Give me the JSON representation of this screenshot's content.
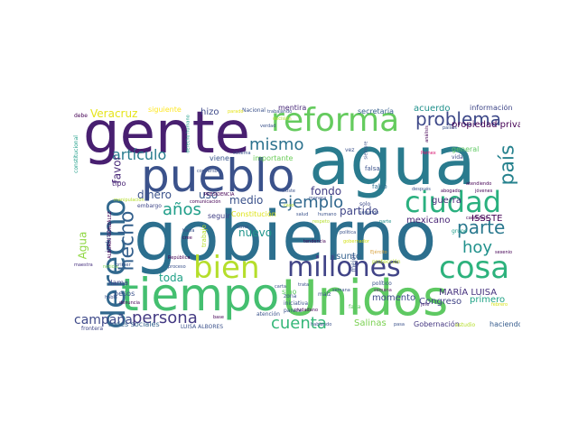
{
  "title": "",
  "words": [
    {
      "text": "agua",
      "color": "#2a7b8e"
    },
    {
      "text": "gobierno",
      "color": "#2c6f8e"
    },
    {
      "text": "gente",
      "color": "#481f70"
    },
    {
      "text": "tiempo",
      "color": "#44bf70"
    },
    {
      "text": "Unidos",
      "color": "#5ec962"
    },
    {
      "text": "pueblo",
      "color": "#3b528b"
    },
    {
      "text": "reforma",
      "color": "#65cb5e"
    },
    {
      "text": "derecho",
      "color": "#31688e"
    },
    {
      "text": "bien",
      "color": "#b5de2b"
    },
    {
      "text": "millones",
      "color": "#414487"
    },
    {
      "text": "cosa",
      "color": "#2db27d"
    },
    {
      "text": "ciudad",
      "color": "#2ab07f"
    },
    {
      "text": "problema",
      "color": "#3e4989"
    },
    {
      "text": "hecho",
      "color": "#34608d"
    },
    {
      "text": "persona",
      "color": "#443a83"
    },
    {
      "text": "cuenta",
      "color": "#35b779"
    },
    {
      "text": "ejemplo",
      "color": "#31688e"
    },
    {
      "text": "parte",
      "color": "#2a788e"
    },
    {
      "text": "país",
      "color": "#26828e"
    },
    {
      "text": "hoy",
      "color": "#21918c"
    },
    {
      "text": "mismo",
      "color": "#2c728e"
    },
    {
      "text": "años",
      "color": "#1f9e89"
    },
    {
      "text": "artículo",
      "color": "#287c8e"
    },
    {
      "text": "campaña",
      "color": "#3e4989"
    },
    {
      "text": "Veracruz",
      "color": "#e5e419"
    },
    {
      "text": "nuevo",
      "color": "#1f958b"
    },
    {
      "text": "dinero",
      "color": "#3b528b"
    },
    {
      "text": "medio",
      "color": "#3b528b"
    },
    {
      "text": "uso",
      "color": "#38598c"
    },
    {
      "text": "fondo",
      "color": "#433e85"
    },
    {
      "text": "partido",
      "color": "#404688"
    },
    {
      "text": "toda",
      "color": "#1fa187"
    },
    {
      "text": "favor",
      "color": "#482878"
    },
    {
      "text": "Agua",
      "color": "#90d743"
    },
    {
      "text": "acuerdo",
      "color": "#21918c"
    },
    {
      "text": "Salinas",
      "color": "#7ad151"
    },
    {
      "text": "mexicano",
      "color": "#482475"
    },
    {
      "text": "guerra",
      "color": "#472c7a"
    },
    {
      "text": "Congreso",
      "color": "#414487"
    },
    {
      "text": "momento",
      "color": "#3e4a89"
    },
    {
      "text": "asunto",
      "color": "#34618d"
    },
    {
      "text": "primero",
      "color": "#20a386"
    },
    {
      "text": "ISSSTE",
      "color": "#440154"
    },
    {
      "text": "MARÍA LUISA",
      "color": "#46327e"
    },
    {
      "text": "hizo",
      "color": "#3e4989"
    },
    {
      "text": "mentira",
      "color": "#482878"
    },
    {
      "text": "información",
      "color": "#3f4788"
    },
    {
      "text": "Gobernación",
      "color": "#453781"
    },
    {
      "text": "haciendo",
      "color": "#365c8d"
    },
    {
      "text": "redes sociales",
      "color": "#33638d"
    },
    {
      "text": "LUISA ALBORES",
      "color": "#3b518b"
    },
    {
      "text": "propiedad privada",
      "color": "#440154"
    },
    {
      "text": "secretaría",
      "color": "#355f8d"
    },
    {
      "text": "siguiente",
      "color": "#fde725"
    },
    {
      "text": "Nacional",
      "color": "#3b528b"
    },
    {
      "text": "pesos",
      "color": "#3b528b"
    },
    {
      "text": "llama",
      "color": "#404688"
    },
    {
      "text": "Pemex",
      "color": "#d8106e"
    },
    {
      "text": "embargo",
      "color": "#3f4788"
    },
    {
      "text": "seguir",
      "color": "#424186"
    },
    {
      "text": "tipo",
      "color": "#482374"
    },
    {
      "text": "viene",
      "color": "#39568c"
    },
    {
      "text": "importante",
      "color": "#6ccd5a"
    },
    {
      "text": "sino",
      "color": "#5ec962"
    },
    {
      "text": "solo",
      "color": "#3e4c8a"
    },
    {
      "text": "Constitución",
      "color": "#dde318"
    },
    {
      "text": "trabajo",
      "color": "#b5de2b"
    },
    {
      "text": "frontera",
      "color": "#3f4788"
    },
    {
      "text": "maestra",
      "color": "#46307e"
    },
    {
      "text": "noticia",
      "color": "#7ad151"
    },
    {
      "text": "primer",
      "color": "#3b528b"
    },
    {
      "text": "general",
      "color": "#5ec962"
    },
    {
      "text": "vida",
      "color": "#3e4c8a"
    },
    {
      "text": "falsa",
      "color": "#3b528b"
    },
    {
      "text": "falso",
      "color": "#2e6e8e"
    },
    {
      "text": "jefe",
      "color": "#482374"
    },
    {
      "text": "zona",
      "color": "#3b528b"
    },
    {
      "text": "iniciativa",
      "color": "#3b528b"
    },
    {
      "text": "parece",
      "color": "#3b528b"
    },
    {
      "text": "ciudadano",
      "color": "#440154"
    },
    {
      "text": "atención",
      "color": "#3b528b"
    },
    {
      "text": "maíz",
      "color": "#3b528b"
    },
    {
      "text": "semana",
      "color": "#3b528b"
    },
    {
      "text": "falta",
      "color": "#5ec962"
    },
    {
      "text": "estudio",
      "color": "#b5de2b"
    },
    {
      "text": "hablando",
      "color": "#3b528b"
    },
    {
      "text": "pasa",
      "color": "#3b528b"
    },
    {
      "text": "protección",
      "color": "#b5de2b"
    },
    {
      "text": "político",
      "color": "#3b528b"
    },
    {
      "text": "candidato",
      "color": "#440154"
    },
    {
      "text": "abogado",
      "color": "#440154"
    },
    {
      "text": "jóvenes",
      "color": "#440154"
    },
    {
      "text": "Ejército",
      "color": "#d8a03a"
    },
    {
      "text": "semana",
      "color": "#6a2c76"
    },
    {
      "text": "atendiendo",
      "color": "#440154"
    },
    {
      "text": "constitucional",
      "color": "#1f9e89"
    },
    {
      "text": "debe",
      "color": "#440154"
    },
    {
      "text": "decisión",
      "color": "#b5de2b"
    },
    {
      "text": "siempre",
      "color": "#3b528b"
    },
    {
      "text": "existe",
      "color": "#3b528b"
    },
    {
      "text": "salud",
      "color": "#3b528b"
    },
    {
      "text": "República",
      "color": "#440154"
    },
    {
      "text": "proceso",
      "color": "#3b528b"
    },
    {
      "text": "comunicación",
      "color": "#440154"
    },
    {
      "text": "trata",
      "color": "#3b528b"
    },
    {
      "text": "sexenio",
      "color": "#440154"
    },
    {
      "text": "febrero",
      "color": "#d5e21a"
    },
    {
      "text": "base",
      "color": "#440154"
    },
    {
      "text": "incluso",
      "color": "#3b528b"
    },
    {
      "text": "mejor",
      "color": "#3b528b"
    },
    {
      "text": "tendencia",
      "color": "#440154"
    },
    {
      "text": "cree",
      "color": "#440154"
    },
    {
      "text": "hacia",
      "color": "#3b528b"
    },
    {
      "text": "sistema",
      "color": "#3b528b"
    },
    {
      "text": "manera",
      "color": "#3b528b"
    },
    {
      "text": "después",
      "color": "#3b528b"
    },
    {
      "text": "respeto",
      "color": "#b5de2b"
    },
    {
      "text": "ALBORES GONZÁLEZ",
      "color": "#440154"
    },
    {
      "text": "PRESIDENCIA",
      "color": "#440154"
    },
    {
      "text": "parado",
      "color": "#e5e419"
    },
    {
      "text": "trabajando",
      "color": "#3b528b"
    },
    {
      "text": "verdad",
      "color": "#3b528b"
    },
    {
      "text": "carta",
      "color": "#3b528b"
    },
    {
      "text": "parte",
      "color": "#21918c"
    },
    {
      "text": "países",
      "color": "#3b528b"
    },
    {
      "text": "vez",
      "color": "#3b528b"
    },
    {
      "text": "grupo",
      "color": "#1f9e89"
    },
    {
      "text": "caso",
      "color": "#b5de2b"
    },
    {
      "text": "política",
      "color": "#3b528b"
    },
    {
      "text": "gobernador",
      "color": "#d5e21a"
    },
    {
      "text": "conversó",
      "color": "#3b528b"
    },
    {
      "text": "manipulación",
      "color": "#b5de2b"
    },
    {
      "text": "denuncia",
      "color": "#440154"
    },
    {
      "text": "habla",
      "color": "#3b528b"
    },
    {
      "text": "tema",
      "color": "#3b528b"
    },
    {
      "text": "segundo",
      "color": "#3b528b"
    },
    {
      "text": "humano",
      "color": "#3b528b"
    },
    {
      "text": "análisis",
      "color": "#440154"
    },
    {
      "text": "derecho humano",
      "color": "#1f9e89"
    }
  ]
}
